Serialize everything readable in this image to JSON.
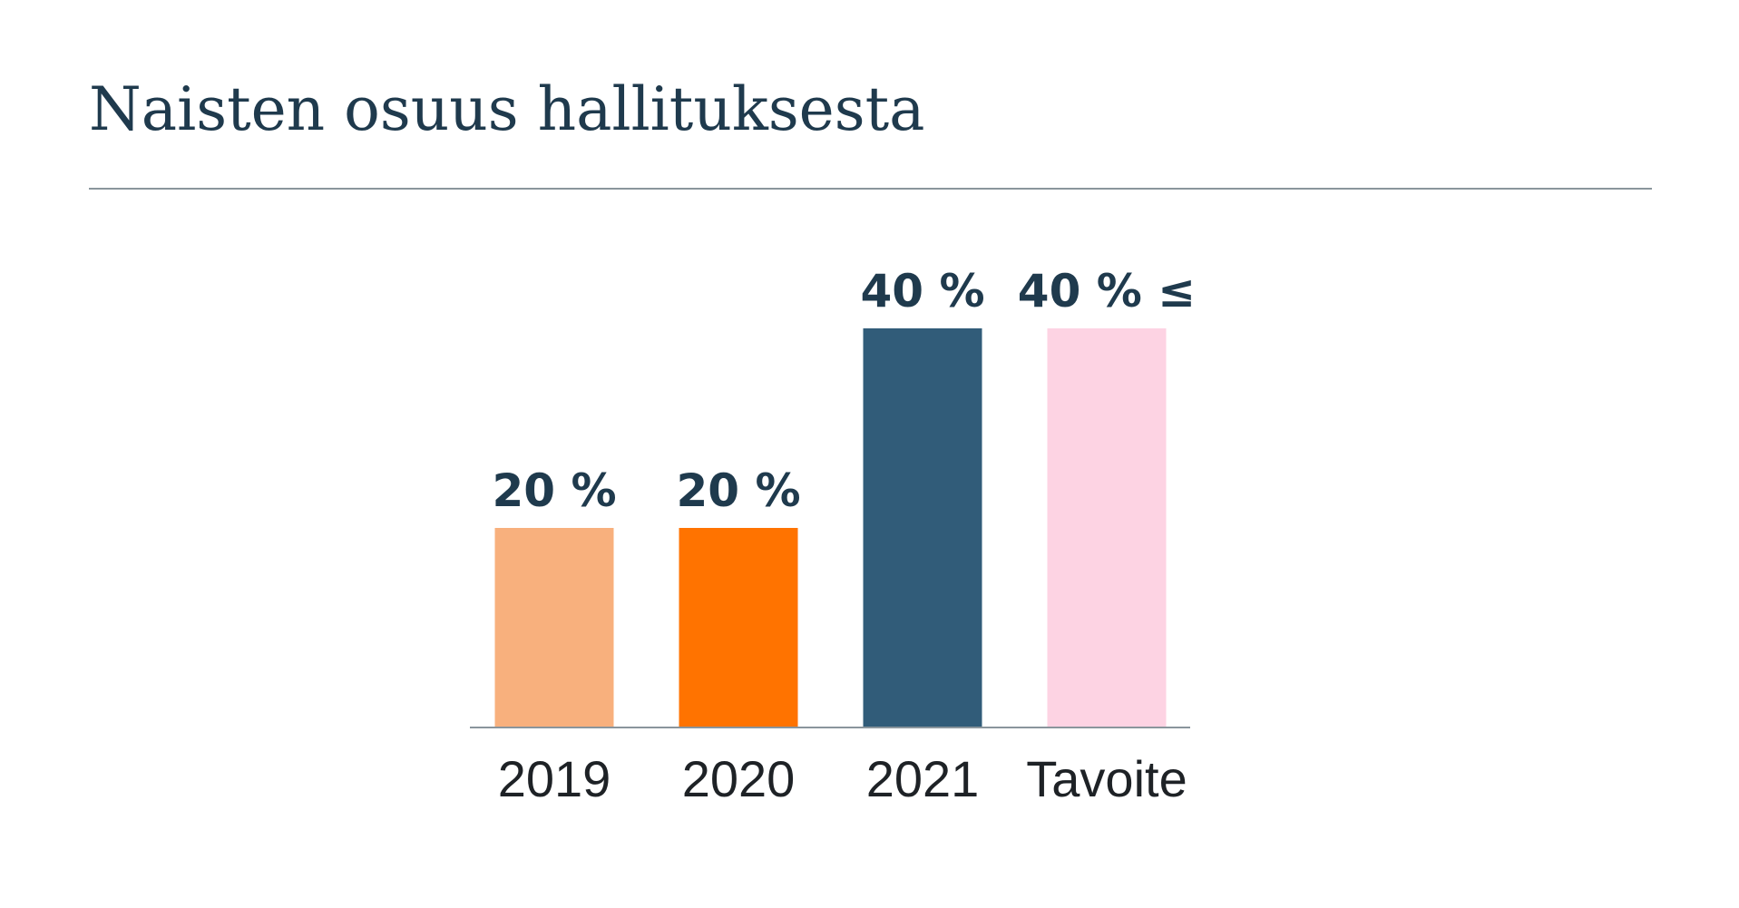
{
  "chart_data": {
    "type": "bar",
    "title": "Naisten osuus hallituksesta",
    "xlabel": "",
    "ylabel": "",
    "categories": [
      "2019",
      "2020",
      "2021",
      "Tavoite"
    ],
    "values": [
      20,
      20,
      40,
      40
    ],
    "value_labels": [
      "20 %",
      "20 %",
      "40 %",
      "40 % ≤"
    ],
    "colors": [
      "#f8b07d",
      "#ff7300",
      "#315c79",
      "#fdd3e3"
    ],
    "ylim": [
      0,
      40
    ],
    "grid": false,
    "legend": "none"
  },
  "colors": {
    "title": "#1f3a4d",
    "value_label": "#1f3a4d",
    "tick_label": "#1e2226",
    "baseline": "#8a959c"
  }
}
